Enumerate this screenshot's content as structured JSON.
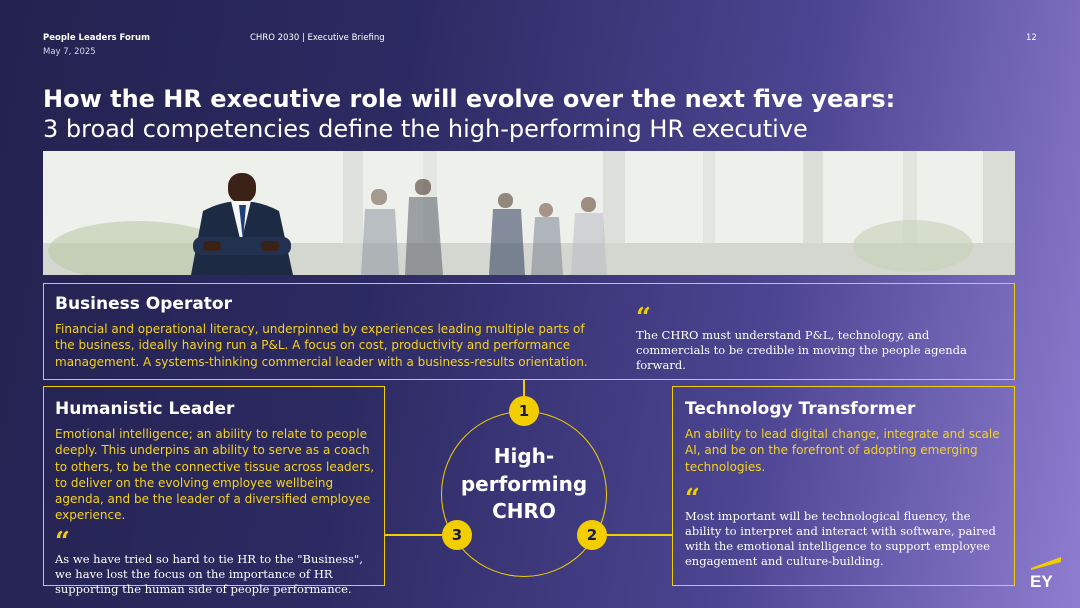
{
  "header": {
    "forum": "People Leaders Forum",
    "date": "May 7, 2025",
    "briefing": "CHRO 2030 | Executive Briefing",
    "page_number": "12"
  },
  "title": {
    "line1": "How the HR executive role will evolve over the next five years:",
    "line2": "3 broad competencies define the high-performing HR executive"
  },
  "banner": {
    "icon": "business-meeting-photo"
  },
  "business_operator": {
    "title": "Business Operator",
    "body": "Financial and operational literacy, underpinned by experiences leading multiple parts of the business, ideally having run a P&L. A focus on cost, productivity and performance management. A systems-thinking commercial leader with a business-results orientation.",
    "quote_mark": "“",
    "quote": "The CHRO must understand P&L, technology, and commercials to be credible in moving the people agenda forward."
  },
  "humanistic_leader": {
    "title": "Humanistic Leader",
    "body": "Emotional intelligence; an ability to relate to people deeply. This underpins an ability to serve as a coach to others, to be the connective tissue across leaders, to deliver on the evolving employee wellbeing agenda, and be the leader of a diversified employee experience.",
    "quote_mark": "“",
    "quote": "As we have tried so hard to tie HR to the \"Business\", we have lost the focus on the importance of HR supporting the human side of people performance."
  },
  "technology_transformer": {
    "title": "Technology Transformer",
    "body": "An ability to lead digital change, integrate and scale AI, and be on the forefront of adopting emerging technologies.",
    "quote_mark": "“",
    "quote": "Most important will be technological fluency, the ability to interpret and interact with software, paired with the emotional intelligence to support employee engagement and culture-building."
  },
  "center": {
    "line1": "High-",
    "line2": "performing",
    "line3": "CHRO",
    "badge1": "1",
    "badge2": "2",
    "badge3": "3"
  },
  "logo": {
    "text": "EY",
    "accent": "#f2cd00"
  },
  "colors": {
    "accent": "#f2cd00",
    "bg_dark": "#23224f",
    "bg_light": "#8f7dd0"
  }
}
